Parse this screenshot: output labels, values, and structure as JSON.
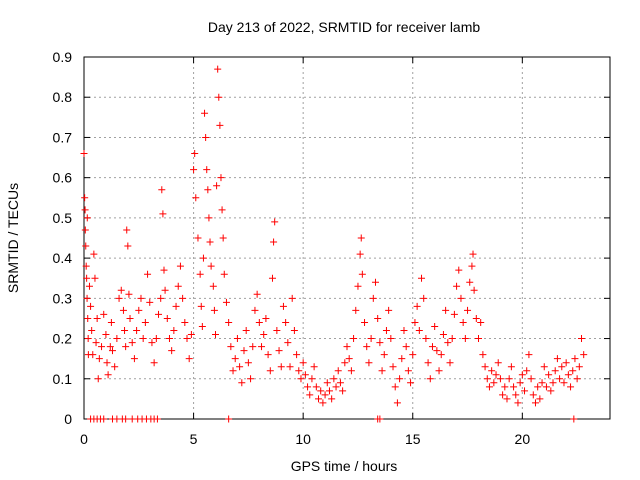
{
  "chart_data": {
    "type": "scatter",
    "title": "Day 213 of 2022, SRMTID for receiver lamb",
    "xlabel": "GPS time / hours",
    "ylabel": "SRMTID / TECUs",
    "xlim": [
      0,
      24
    ],
    "ylim": [
      0,
      0.9
    ],
    "xticks": [
      "0",
      "5",
      "10",
      "15",
      "20"
    ],
    "yticks": [
      "0",
      "0.1",
      "0.2",
      "0.3",
      "0.4",
      "0.5",
      "0.6",
      "0.7",
      "0.8",
      "0.9"
    ],
    "marker": "+",
    "color": "#ff0000",
    "grid": true,
    "series": [
      {
        "name": "lamb",
        "points": [
          [
            0.0,
            0.66
          ],
          [
            0.03,
            0.55
          ],
          [
            0.05,
            0.52
          ],
          [
            0.06,
            0.47
          ],
          [
            0.08,
            0.43
          ],
          [
            0.1,
            0.38
          ],
          [
            0.12,
            0.35
          ],
          [
            0.14,
            0.3
          ],
          [
            0.15,
            0.5
          ],
          [
            0.17,
            0.25
          ],
          [
            0.19,
            0.2
          ],
          [
            0.2,
            0.16
          ],
          [
            0.25,
            0.33
          ],
          [
            0.3,
            0.28
          ],
          [
            0.35,
            0.22
          ],
          [
            0.4,
            0.16
          ],
          [
            0.45,
            0.41
          ],
          [
            0.5,
            0.35
          ],
          [
            0.55,
            0.19
          ],
          [
            0.6,
            0.25
          ],
          [
            0.65,
            0.1
          ],
          [
            0.7,
            0.15
          ],
          [
            0.8,
            0.18
          ],
          [
            0.9,
            0.26
          ],
          [
            1.0,
            0.21
          ],
          [
            1.05,
            0.14
          ],
          [
            1.1,
            0.11
          ],
          [
            1.2,
            0.18
          ],
          [
            1.25,
            0.24
          ],
          [
            1.3,
            0.17
          ],
          [
            1.4,
            0.13
          ],
          [
            1.5,
            0.2
          ],
          [
            1.6,
            0.3
          ],
          [
            1.7,
            0.32
          ],
          [
            1.8,
            0.27
          ],
          [
            1.85,
            0.22
          ],
          [
            1.9,
            0.18
          ],
          [
            1.95,
            0.47
          ],
          [
            2.0,
            0.43
          ],
          [
            2.05,
            0.31
          ],
          [
            2.1,
            0.25
          ],
          [
            2.2,
            0.19
          ],
          [
            2.3,
            0.15
          ],
          [
            2.4,
            0.22
          ],
          [
            2.5,
            0.27
          ],
          [
            2.6,
            0.3
          ],
          [
            2.7,
            0.2
          ],
          [
            2.8,
            0.24
          ],
          [
            2.9,
            0.36
          ],
          [
            3.0,
            0.29
          ],
          [
            3.1,
            0.19
          ],
          [
            3.2,
            0.14
          ],
          [
            3.3,
            0.2
          ],
          [
            3.4,
            0.26
          ],
          [
            3.5,
            0.3
          ],
          [
            3.55,
            0.57
          ],
          [
            3.6,
            0.51
          ],
          [
            3.65,
            0.37
          ],
          [
            3.7,
            0.32
          ],
          [
            3.8,
            0.25
          ],
          [
            3.9,
            0.2
          ],
          [
            4.0,
            0.17
          ],
          [
            4.1,
            0.22
          ],
          [
            4.2,
            0.28
          ],
          [
            4.3,
            0.33
          ],
          [
            4.4,
            0.38
          ],
          [
            4.5,
            0.3
          ],
          [
            4.6,
            0.24
          ],
          [
            4.7,
            0.2
          ],
          [
            4.8,
            0.15
          ],
          [
            4.9,
            0.21
          ],
          [
            5.0,
            0.62
          ],
          [
            5.05,
            0.66
          ],
          [
            5.1,
            0.55
          ],
          [
            5.2,
            0.45
          ],
          [
            5.3,
            0.36
          ],
          [
            5.35,
            0.28
          ],
          [
            5.4,
            0.23
          ],
          [
            5.45,
            0.4
          ],
          [
            5.5,
            0.76
          ],
          [
            5.55,
            0.7
          ],
          [
            5.6,
            0.62
          ],
          [
            5.65,
            0.57
          ],
          [
            5.7,
            0.5
          ],
          [
            5.75,
            0.44
          ],
          [
            5.8,
            0.38
          ],
          [
            5.9,
            0.33
          ],
          [
            5.95,
            0.27
          ],
          [
            6.0,
            0.21
          ],
          [
            6.05,
            0.58
          ],
          [
            6.1,
            0.87
          ],
          [
            6.15,
            0.8
          ],
          [
            6.2,
            0.73
          ],
          [
            6.25,
            0.6
          ],
          [
            6.3,
            0.52
          ],
          [
            6.35,
            0.45
          ],
          [
            6.4,
            0.36
          ],
          [
            6.5,
            0.29
          ],
          [
            6.6,
            0.24
          ],
          [
            6.7,
            0.18
          ],
          [
            6.8,
            0.12
          ],
          [
            6.9,
            0.15
          ],
          [
            7.0,
            0.2
          ],
          [
            7.1,
            0.13
          ],
          [
            7.2,
            0.09
          ],
          [
            7.3,
            0.17
          ],
          [
            7.4,
            0.22
          ],
          [
            7.5,
            0.14
          ],
          [
            7.6,
            0.1
          ],
          [
            7.7,
            0.18
          ],
          [
            7.8,
            0.27
          ],
          [
            7.9,
            0.31
          ],
          [
            8.0,
            0.24
          ],
          [
            8.1,
            0.18
          ],
          [
            8.2,
            0.21
          ],
          [
            8.3,
            0.25
          ],
          [
            8.4,
            0.16
          ],
          [
            8.5,
            0.12
          ],
          [
            8.6,
            0.35
          ],
          [
            8.65,
            0.44
          ],
          [
            8.7,
            0.49
          ],
          [
            8.8,
            0.22
          ],
          [
            8.9,
            0.17
          ],
          [
            9.0,
            0.13
          ],
          [
            9.1,
            0.28
          ],
          [
            9.2,
            0.24
          ],
          [
            9.3,
            0.19
          ],
          [
            9.4,
            0.13
          ],
          [
            9.5,
            0.3
          ],
          [
            9.6,
            0.22
          ],
          [
            9.7,
            0.16
          ],
          [
            9.8,
            0.12
          ],
          [
            9.9,
            0.1
          ],
          [
            10.0,
            0.14
          ],
          [
            10.1,
            0.11
          ],
          [
            10.2,
            0.08
          ],
          [
            10.3,
            0.06
          ],
          [
            10.4,
            0.1
          ],
          [
            10.5,
            0.13
          ],
          [
            10.6,
            0.08
          ],
          [
            10.7,
            0.05
          ],
          [
            10.8,
            0.07
          ],
          [
            10.9,
            0.04
          ],
          [
            11.0,
            0.06
          ],
          [
            11.1,
            0.09
          ],
          [
            11.2,
            0.07
          ],
          [
            11.3,
            0.05
          ],
          [
            11.4,
            0.1
          ],
          [
            11.5,
            0.08
          ],
          [
            11.6,
            0.12
          ],
          [
            11.7,
            0.09
          ],
          [
            11.8,
            0.07
          ],
          [
            11.9,
            0.14
          ],
          [
            12.0,
            0.18
          ],
          [
            12.1,
            0.15
          ],
          [
            12.2,
            0.12
          ],
          [
            12.3,
            0.2
          ],
          [
            12.4,
            0.27
          ],
          [
            12.5,
            0.33
          ],
          [
            12.6,
            0.41
          ],
          [
            12.65,
            0.45
          ],
          [
            12.7,
            0.36
          ],
          [
            12.8,
            0.24
          ],
          [
            12.9,
            0.18
          ],
          [
            13.0,
            0.14
          ],
          [
            13.1,
            0.2
          ],
          [
            13.2,
            0.3
          ],
          [
            13.3,
            0.34
          ],
          [
            13.4,
            0.25
          ],
          [
            13.5,
            0.19
          ],
          [
            13.6,
            0.12
          ],
          [
            13.7,
            0.16
          ],
          [
            13.8,
            0.22
          ],
          [
            13.9,
            0.27
          ],
          [
            14.0,
            0.2
          ],
          [
            14.1,
            0.13
          ],
          [
            14.2,
            0.08
          ],
          [
            14.3,
            0.04
          ],
          [
            14.4,
            0.1
          ],
          [
            14.5,
            0.15
          ],
          [
            14.6,
            0.22
          ],
          [
            14.7,
            0.18
          ],
          [
            14.8,
            0.12
          ],
          [
            14.9,
            0.09
          ],
          [
            15.0,
            0.16
          ],
          [
            15.1,
            0.24
          ],
          [
            15.2,
            0.28
          ],
          [
            15.3,
            0.22
          ],
          [
            15.4,
            0.35
          ],
          [
            15.5,
            0.3
          ],
          [
            15.6,
            0.2
          ],
          [
            15.7,
            0.14
          ],
          [
            15.8,
            0.1
          ],
          [
            15.9,
            0.18
          ],
          [
            16.0,
            0.23
          ],
          [
            16.1,
            0.17
          ],
          [
            16.2,
            0.12
          ],
          [
            16.3,
            0.16
          ],
          [
            16.4,
            0.21
          ],
          [
            16.5,
            0.27
          ],
          [
            16.6,
            0.19
          ],
          [
            16.7,
            0.14
          ],
          [
            16.8,
            0.2
          ],
          [
            16.9,
            0.26
          ],
          [
            17.0,
            0.33
          ],
          [
            17.1,
            0.37
          ],
          [
            17.2,
            0.3
          ],
          [
            17.3,
            0.24
          ],
          [
            17.4,
            0.2
          ],
          [
            17.5,
            0.27
          ],
          [
            17.6,
            0.34
          ],
          [
            17.7,
            0.38
          ],
          [
            17.75,
            0.41
          ],
          [
            17.8,
            0.32
          ],
          [
            17.9,
            0.25
          ],
          [
            18.0,
            0.2
          ],
          [
            18.1,
            0.24
          ],
          [
            18.2,
            0.16
          ],
          [
            18.3,
            0.13
          ],
          [
            18.4,
            0.1
          ],
          [
            18.5,
            0.08
          ],
          [
            18.6,
            0.12
          ],
          [
            18.7,
            0.09
          ],
          [
            18.8,
            0.11
          ],
          [
            18.9,
            0.14
          ],
          [
            19.0,
            0.1
          ],
          [
            19.1,
            0.06
          ],
          [
            19.2,
            0.08
          ],
          [
            19.3,
            0.05
          ],
          [
            19.4,
            0.1
          ],
          [
            19.5,
            0.13
          ],
          [
            19.6,
            0.08
          ],
          [
            19.7,
            0.06
          ],
          [
            19.8,
            0.04
          ],
          [
            19.9,
            0.09
          ],
          [
            20.0,
            0.11
          ],
          [
            20.1,
            0.07
          ],
          [
            20.2,
            0.12
          ],
          [
            20.3,
            0.16
          ],
          [
            20.4,
            0.1
          ],
          [
            20.5,
            0.06
          ],
          [
            20.6,
            0.04
          ],
          [
            20.7,
            0.08
          ],
          [
            20.8,
            0.05
          ],
          [
            20.9,
            0.09
          ],
          [
            21.0,
            0.13
          ],
          [
            21.1,
            0.08
          ],
          [
            21.2,
            0.11
          ],
          [
            21.3,
            0.07
          ],
          [
            21.4,
            0.09
          ],
          [
            21.5,
            0.12
          ],
          [
            21.6,
            0.15
          ],
          [
            21.7,
            0.1
          ],
          [
            21.8,
            0.13
          ],
          [
            21.9,
            0.09
          ],
          [
            22.0,
            0.14
          ],
          [
            22.1,
            0.11
          ],
          [
            22.2,
            0.08
          ],
          [
            22.3,
            0.12
          ],
          [
            22.4,
            0.15
          ],
          [
            22.5,
            0.1
          ],
          [
            22.6,
            0.13
          ],
          [
            22.7,
            0.2
          ],
          [
            22.8,
            0.16
          ],
          [
            0.3,
            0.0
          ],
          [
            0.45,
            0.0
          ],
          [
            0.6,
            0.0
          ],
          [
            0.75,
            0.0
          ],
          [
            0.9,
            0.0
          ],
          [
            1.3,
            0.0
          ],
          [
            1.5,
            0.0
          ],
          [
            1.75,
            0.0
          ],
          [
            1.9,
            0.0
          ],
          [
            2.2,
            0.0
          ],
          [
            2.45,
            0.0
          ],
          [
            2.65,
            0.0
          ],
          [
            2.85,
            0.0
          ],
          [
            3.05,
            0.0
          ],
          [
            3.2,
            0.0
          ],
          [
            3.35,
            0.0
          ],
          [
            6.6,
            0.0
          ],
          [
            13.4,
            0.0
          ],
          [
            13.5,
            0.0
          ],
          [
            22.35,
            0.0
          ]
        ]
      }
    ]
  }
}
